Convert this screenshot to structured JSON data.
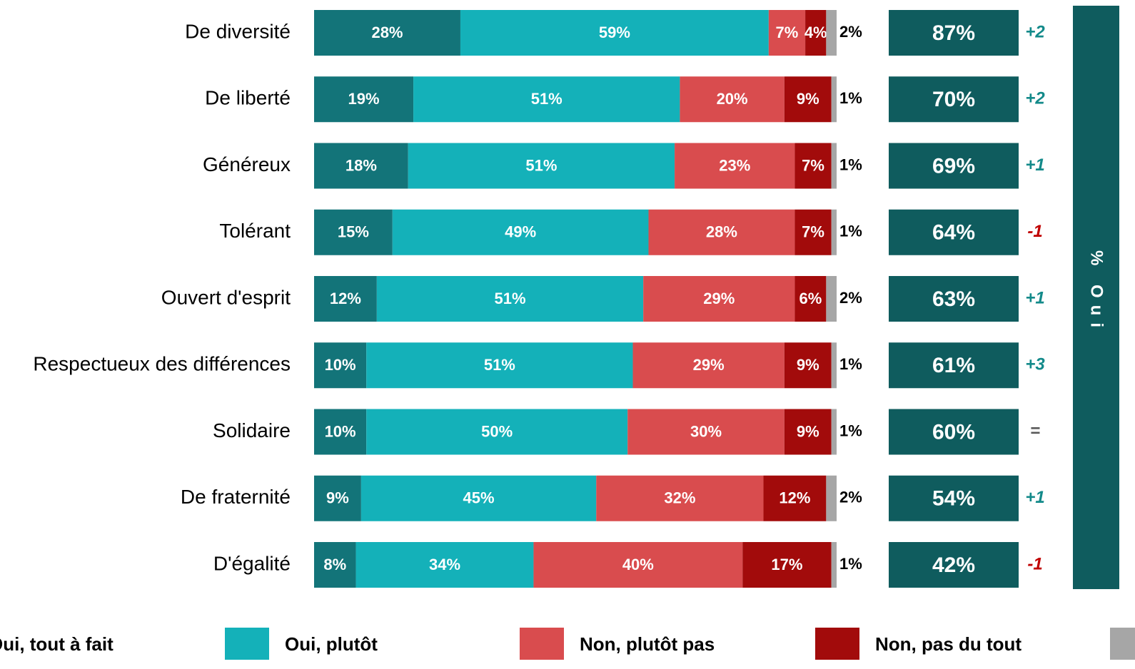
{
  "chart_data": {
    "type": "stacked-bar-horizontal",
    "categories": [
      "De diversité",
      "De liberté",
      "Généreux",
      "Tolérant",
      "Ouvert d'esprit",
      "Respectueux des différences",
      "Solidaire",
      "De fraternité",
      "D'égalité"
    ],
    "xlim": [
      0,
      100
    ],
    "series": [
      {
        "name": "Oui, tout à fait",
        "color": "#137479",
        "values": [
          28,
          19,
          18,
          15,
          12,
          10,
          10,
          9,
          8
        ],
        "value_labels": [
          "28%",
          "19%",
          "18%",
          "15%",
          "12%",
          "10%",
          "10%",
          "9%",
          "8%"
        ]
      },
      {
        "name": "Oui, plutôt",
        "color": "#14b1b9",
        "values": [
          59,
          51,
          51,
          49,
          51,
          51,
          50,
          45,
          34
        ],
        "value_labels": [
          "59%",
          "51%",
          "51%",
          "49%",
          "51%",
          "51%",
          "50%",
          "45%",
          "34%"
        ]
      },
      {
        "name": "Non, plutôt pas",
        "color": "#d94c4e",
        "values": [
          7,
          20,
          23,
          28,
          29,
          29,
          30,
          32,
          40
        ],
        "value_labels": [
          "7%",
          "20%",
          "23%",
          "28%",
          "29%",
          "29%",
          "30%",
          "32%",
          "40%"
        ]
      },
      {
        "name": "Non, pas du tout",
        "color": "#a20b0b",
        "values": [
          4,
          9,
          7,
          7,
          6,
          9,
          9,
          12,
          17
        ],
        "value_labels": [
          "4%",
          "9%",
          "7%",
          "7%",
          "6%",
          "9%",
          "9%",
          "12%",
          "17%"
        ]
      },
      {
        "color": "#a6a6a6",
        "values": [
          2,
          1,
          1,
          1,
          2,
          1,
          1,
          2,
          1
        ],
        "value_labels": [
          "2%",
          "1%",
          "1%",
          "1%",
          "2%",
          "1%",
          "1%",
          "2%",
          "1%"
        ]
      }
    ],
    "totals": {
      "title": "% Oui",
      "color": "#0f5c5e",
      "values": [
        87,
        70,
        69,
        64,
        63,
        61,
        60,
        54,
        42
      ],
      "value_labels": [
        "87%",
        "70%",
        "69%",
        "64%",
        "63%",
        "61%",
        "60%",
        "54%",
        "42%"
      ]
    },
    "changes": [
      "+2",
      "+2",
      "+1",
      "-1",
      "+1",
      "+3",
      "=",
      "+1",
      "-1"
    ],
    "change_colors": {
      "positive": "#138a8a",
      "negative": "#c00000",
      "neutral": "#595959"
    }
  }
}
